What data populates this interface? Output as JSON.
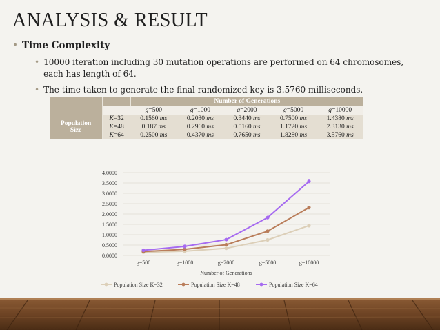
{
  "slide": {
    "title": "ANALYSIS & RESULT",
    "bullet_main": "Time Complexity",
    "bullet_sub": [
      "10000 iteration including 30 mutation operations are performed on 64 chromosomes, each has length of 64.",
      "The time taken to generate the final randomized key is 3.5760 milliseconds."
    ],
    "bullet_glyph": "•"
  },
  "table": {
    "header": "Number of Generations",
    "row_group_label_line1": "Population",
    "row_group_label_line2": "Size",
    "g_columns": [
      {
        "var": "g",
        "val": "=500"
      },
      {
        "var": "g",
        "val": "=1000"
      },
      {
        "var": "g",
        "val": "=2000"
      },
      {
        "var": "g",
        "val": "=5000"
      },
      {
        "var": "g",
        "val": "=10000"
      }
    ],
    "rows": [
      {
        "k_var": "K",
        "k_val": "=32",
        "cells": [
          {
            "num": "0.1560",
            "unit": "ms"
          },
          {
            "num": "0.2030",
            "unit": "ms"
          },
          {
            "num": "0.3440",
            "unit": "ms"
          },
          {
            "num": "0.7500",
            "unit": "ms"
          },
          {
            "num": "1.4380",
            "unit": "ms"
          }
        ]
      },
      {
        "k_var": "K",
        "k_val": "=48",
        "cells": [
          {
            "num": "0.187",
            "unit": "ms"
          },
          {
            "num": "0.2960",
            "unit": "ms"
          },
          {
            "num": "0.5160",
            "unit": "ms"
          },
          {
            "num": "1.1720",
            "unit": "ms"
          },
          {
            "num": "2.3130",
            "unit": "ms"
          }
        ]
      },
      {
        "k_var": "K",
        "k_val": "=64",
        "cells": [
          {
            "num": "0.2500",
            "unit": "ms"
          },
          {
            "num": "0.4370",
            "unit": "ms"
          },
          {
            "num": "0.7650",
            "unit": "ms"
          },
          {
            "num": "1.8280",
            "unit": "ms"
          },
          {
            "num": "3.5760",
            "unit": "ms"
          }
        ]
      }
    ]
  },
  "chart_data": {
    "type": "line",
    "categories": [
      "g=500",
      "g=1000",
      "g=2000",
      "g=5000",
      "g=10000"
    ],
    "series": [
      {
        "name": "Population Size K=32",
        "values": [
          0.156,
          0.203,
          0.344,
          0.75,
          1.438
        ],
        "color": "#dccfb8"
      },
      {
        "name": "Population Size K=48",
        "values": [
          0.187,
          0.296,
          0.516,
          1.172,
          2.313
        ],
        "color": "#b97d5a"
      },
      {
        "name": "Population Size K=64",
        "values": [
          0.25,
          0.437,
          0.765,
          1.828,
          3.576
        ],
        "color": "#a66bf0"
      }
    ],
    "yticks": [
      "0.0000",
      "0.5000",
      "1.0000",
      "1.5000",
      "2.0000",
      "2.5000",
      "3.0000",
      "3.5000",
      "4.0000"
    ],
    "ylim": [
      0,
      4
    ],
    "xlabel": "Number of Generations",
    "ylabel": "",
    "grid": true,
    "legend_position": "bottom"
  }
}
